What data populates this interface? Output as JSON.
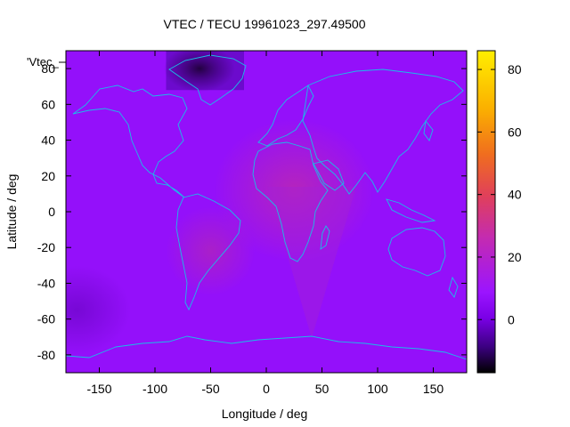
{
  "chart_data": {
    "type": "heatmap",
    "title": "VTEC / TECU 19961023_297.49500",
    "xlabel": "Longitude / deg",
    "ylabel": "Latitude / deg",
    "series_label": "'Vtec_",
    "xlim": [
      -180,
      180
    ],
    "ylim": [
      -90,
      90
    ],
    "x_ticks": [
      -150,
      -100,
      -50,
      0,
      50,
      100,
      150
    ],
    "y_ticks": [
      -80,
      -60,
      -40,
      -20,
      0,
      20,
      40,
      60,
      80
    ],
    "colorbar": {
      "range": [
        -17,
        86
      ],
      "ticks": [
        0,
        20,
        40,
        60,
        80
      ],
      "palette": [
        "#000000",
        "#3b0080",
        "#7a00e6",
        "#9b14ff",
        "#c42bb0",
        "#e0405a",
        "#f06e1e",
        "#fbb000",
        "#ffee00"
      ],
      "palette_stops": [
        0.0,
        0.08,
        0.17,
        0.25,
        0.42,
        0.55,
        0.68,
        0.82,
        1.0
      ]
    },
    "background_value": 7,
    "features": [
      {
        "name": "africa-enhancement",
        "lon": 25,
        "lat": 12,
        "peak": 23
      },
      {
        "name": "south-america-enhancement",
        "lon": -50,
        "lat": -22,
        "peak": 20
      },
      {
        "name": "greenland-depletion",
        "lon": -60,
        "lat": 80,
        "peak": -12
      },
      {
        "name": "pacific-low",
        "lon": -170,
        "lat": -55,
        "peak": 2
      }
    ]
  }
}
